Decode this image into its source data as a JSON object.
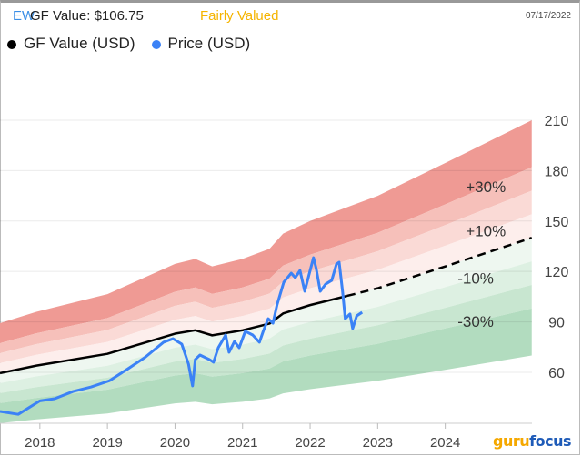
{
  "header": {
    "ticker": "EW",
    "gf_value_label": "GF Value: $106.75",
    "valuation": "Fairly Valued",
    "date": "07/17/2022"
  },
  "legend": [
    {
      "label": "GF Value (USD)",
      "color": "#000000"
    },
    {
      "label": "Price (USD)",
      "color": "#3b82f6"
    }
  ],
  "logo": {
    "text": "gurufocus"
  },
  "chart_data": {
    "type": "line",
    "xlim": [
      2017.41,
      2025.28
    ],
    "ylim": [
      30,
      230
    ],
    "x_ticks": [
      "2018",
      "2019",
      "2020",
      "2021",
      "2022",
      "2023",
      "2024"
    ],
    "y_ticks": [
      60,
      90,
      120,
      150,
      180,
      210
    ],
    "y_axis_position": "right",
    "grid": "horizontal",
    "band_labels": [
      {
        "label": "+30%",
        "mult": 1.3
      },
      {
        "label": "+10%",
        "mult": 1.1
      },
      {
        "label": "-10%",
        "mult": 0.9
      },
      {
        "label": "-30%",
        "mult": 0.7
      }
    ],
    "band_multipliers": [
      1.5,
      1.3,
      1.2,
      1.1,
      1.0,
      0.9,
      0.8,
      0.7,
      0.5
    ],
    "band_colors": [
      "#ef9a94",
      "#f6c0ba",
      "#fadad6",
      "#fdeeec",
      "#eef7f0",
      "#ddf0e2",
      "#c8e6d0",
      "#b2dcbf"
    ],
    "series": [
      {
        "name": "GF Value (USD)",
        "color": "#000000",
        "x": [
          2017.41,
          2017.95,
          2019.0,
          2020.0,
          2020.3,
          2020.55,
          2021.0,
          2021.4,
          2021.6,
          2022.0,
          2022.55
        ],
        "y": [
          59.5,
          64,
          71,
          83,
          85,
          82,
          85,
          89,
          95,
          100,
          105.5
        ]
      },
      {
        "name": "GF Value projection",
        "color": "#000000",
        "dashed": true,
        "x": [
          2022.55,
          2023.0,
          2024.0,
          2025.28
        ],
        "y": [
          105.5,
          110,
          123,
          140
        ]
      },
      {
        "name": "Price (USD)",
        "color": "#3b82f6",
        "x": [
          2017.41,
          2017.68,
          2018.0,
          2018.22,
          2018.49,
          2018.76,
          2019.03,
          2019.3,
          2019.56,
          2019.83,
          2019.97,
          2020.1,
          2020.2,
          2020.26,
          2020.3,
          2020.37,
          2020.51,
          2020.57,
          2020.64,
          2020.75,
          2020.8,
          2020.88,
          2020.95,
          2021.04,
          2021.15,
          2021.25,
          2021.31,
          2021.38,
          2021.45,
          2021.51,
          2021.61,
          2021.72,
          2021.78,
          2021.85,
          2021.92,
          2021.99,
          2022.05,
          2022.09,
          2022.15,
          2022.23,
          2022.32,
          2022.39,
          2022.43,
          2022.48,
          2022.52,
          2022.59,
          2022.63,
          2022.69,
          2022.77
        ],
        "y": [
          36.7,
          35,
          43,
          44.3,
          48.6,
          51.3,
          55,
          62,
          69,
          77.9,
          80,
          76.8,
          64.9,
          51.9,
          67.6,
          70.3,
          67.6,
          66,
          74.6,
          82.2,
          71.9,
          78.4,
          74.6,
          84.4,
          82.2,
          77.9,
          84.9,
          91.9,
          89.2,
          100.1,
          113.6,
          119,
          116.3,
          120.6,
          108.2,
          119,
          128.2,
          121.7,
          108.2,
          112.5,
          114.7,
          124.4,
          125.5,
          108.2,
          91.9,
          94.7,
          86,
          93.6,
          95.7
        ]
      }
    ]
  }
}
